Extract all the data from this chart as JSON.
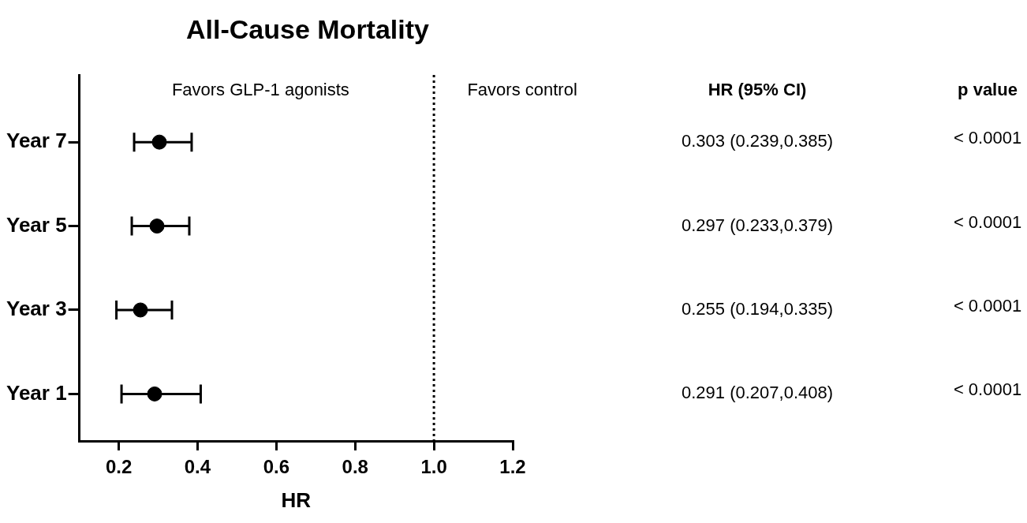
{
  "chart_data": {
    "type": "scatter",
    "orientation": "horizontal",
    "title": "All-Cause Mortality",
    "xlabel": "HR",
    "categories": [
      "Year 7",
      "Year 5",
      "Year 3",
      "Year 1"
    ],
    "values": [
      0.303,
      0.297,
      0.255,
      0.291
    ],
    "errors": [
      [
        0.239,
        0.385
      ],
      [
        0.233,
        0.379
      ],
      [
        0.194,
        0.335
      ],
      [
        0.207,
        0.408
      ]
    ],
    "value_labels": [
      "0.303 (0.239,0.385)",
      "0.297 (0.233,0.379)",
      "0.255 (0.194,0.335)",
      "0.291 (0.207,0.408)"
    ],
    "color": "#000000",
    "marker": "circle",
    "grid": false,
    "legend": false,
    "xlim": [
      0.1,
      1.2
    ],
    "xticks": [
      {
        "value": 0.2,
        "label": "0.2"
      },
      {
        "value": 0.4,
        "label": "0.4"
      },
      {
        "value": 0.6,
        "label": "0.6"
      },
      {
        "value": 0.8,
        "label": "0.8"
      },
      {
        "value": 1,
        "label": "1.0"
      },
      {
        "value": 1.2,
        "label": "1.2"
      }
    ],
    "ref_lines": [
      {
        "axis": "x",
        "value": 1,
        "line_style": "dotted",
        "color": "#000000"
      }
    ],
    "annotations": [
      "Favors GLP-1 agonists",
      "Favors control",
      "HR (95% CI)",
      "p value",
      "< 0.0001",
      "< 0.0001",
      "< 0.0001",
      "< 0.0001"
    ]
  }
}
